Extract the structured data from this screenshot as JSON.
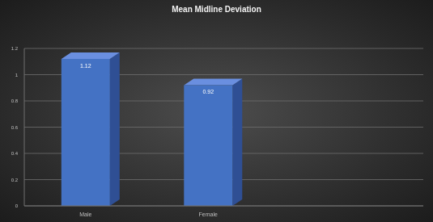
{
  "chart_data": {
    "type": "bar",
    "title": "Mean Midline Deviation",
    "categories": [
      "Male",
      "Female"
    ],
    "values": [
      1.12,
      0.92
    ],
    "color": "#4472c4",
    "ylim": [
      0,
      1.2
    ],
    "yticks": [
      0,
      0.2,
      0.4,
      0.6,
      0.8,
      1,
      1.2
    ],
    "grid": true,
    "data_labels": true
  }
}
